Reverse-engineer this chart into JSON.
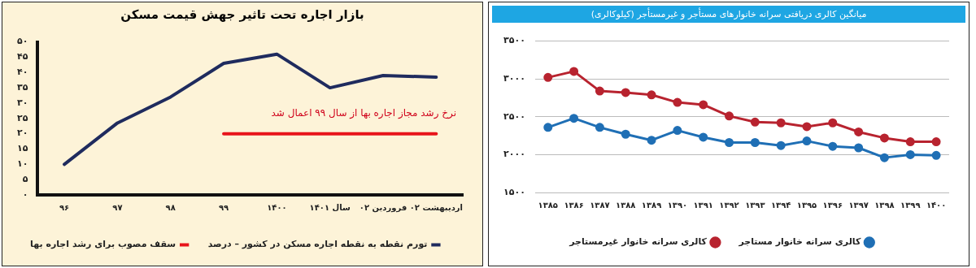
{
  "chart_data": [
    {
      "type": "line",
      "title": "بازار اجاره تحت تاثیر جهش قیمت مسکن",
      "categories": [
        "۹۶",
        "۹۷",
        "۹۸",
        "۹۹",
        "۱۴۰۰",
        "سال ۱۴۰۱",
        "فروردین ۰۲",
        "اردیبهشت ۰۲"
      ],
      "series": [
        {
          "name": "تورم نقطه به نقطه اجاره مسکن در کشور – درصد",
          "color": "#1f2b5e",
          "values": [
            10,
            23.5,
            32,
            43,
            46,
            35,
            39,
            38.5
          ]
        },
        {
          "name": "سقف مصوب برای رشد اجاره بها",
          "color": "#e8141b",
          "values": [
            null,
            null,
            null,
            20,
            20,
            20,
            20,
            20
          ]
        }
      ],
      "ylim": [
        0,
        50
      ],
      "yticks": [
        {
          "value": 0,
          "label": "۰"
        },
        {
          "value": 5,
          "label": "۵"
        },
        {
          "value": 10,
          "label": "۱۰"
        },
        {
          "value": 15,
          "label": "۱۵"
        },
        {
          "value": 20,
          "label": "۲۰"
        },
        {
          "value": 25,
          "label": "۲۵"
        },
        {
          "value": 30,
          "label": "۳۰"
        },
        {
          "value": 35,
          "label": "۳۵"
        },
        {
          "value": 40,
          "label": "۴۰"
        },
        {
          "value": 45,
          "label": "۴۵"
        },
        {
          "value": 50,
          "label": "۵۰"
        }
      ],
      "annotations": [
        "نرخ رشد مجاز اجاره بها از سال ۹۹ اعمال شد"
      ],
      "grid": false,
      "legend": "bottom",
      "marker": "none"
    },
    {
      "type": "line",
      "title": "میانگین کالری دریافتی سرانه خانوارهای مستأجر و غیرمستأجر (کیلوکالری)",
      "categories": [
        "۱۳۸۵",
        "۱۳۸۶",
        "۱۳۸۷",
        "۱۳۸۸",
        "۱۳۸۹",
        "۱۳۹۰",
        "۱۳۹۱",
        "۱۳۹۲",
        "۱۳۹۳",
        "۱۳۹۴",
        "۱۳۹۵",
        "۱۳۹۶",
        "۱۳۹۷",
        "۱۳۹۸",
        "۱۳۹۹",
        "۱۴۰۰"
      ],
      "series": [
        {
          "name": "کالری سرانه خانوار مستاجر",
          "color": "#1f6fb5",
          "values": [
            2360,
            2480,
            2360,
            2270,
            2190,
            2320,
            2230,
            2160,
            2160,
            2120,
            2180,
            2110,
            2090,
            1960,
            2000,
            1990
          ]
        },
        {
          "name": "کالری سرانه خانوار غیرمستاجر",
          "color": "#b8232f",
          "values": [
            3020,
            3100,
            2840,
            2820,
            2790,
            2690,
            2660,
            2510,
            2430,
            2420,
            2370,
            2420,
            2300,
            2220,
            2170,
            2170
          ]
        }
      ],
      "ylim": [
        1500,
        3500
      ],
      "yticks": [
        {
          "value": 1500,
          "label": "۱۵۰۰"
        },
        {
          "value": 2000,
          "label": "۲۰۰۰"
        },
        {
          "value": 2500,
          "label": "۲۵۰۰"
        },
        {
          "value": 3000,
          "label": "۳۰۰۰"
        },
        {
          "value": 3500,
          "label": "۳۵۰۰"
        }
      ],
      "grid": "y",
      "legend": "bottom",
      "marker": "circle"
    }
  ]
}
